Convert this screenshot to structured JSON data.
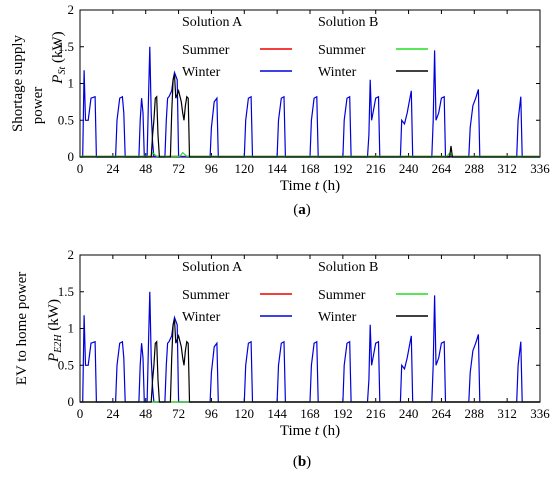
{
  "chart_data": [
    {
      "type": "line",
      "caption": "a",
      "ylabel_line1": "Shortage supply",
      "ylabel_line2": "power",
      "ylabel_symbol": "P",
      "ylabel_sub": "St",
      "ylabel_unit": "(kW)",
      "xlabel_word": "Time",
      "xlabel_symbol": "t",
      "xlabel_unit": "(h)",
      "xlim": [
        0,
        336
      ],
      "ylim": [
        0,
        2
      ],
      "xticks": [
        0,
        24,
        48,
        72,
        96,
        120,
        144,
        168,
        192,
        216,
        240,
        264,
        288,
        312,
        336
      ],
      "yticks": [
        0,
        0.5,
        1,
        1.5,
        2
      ],
      "legend": {
        "group_a": "Solution A",
        "group_b": "Solution B",
        "a_summer": "Summer",
        "a_winter": "Winter",
        "b_summer": "Summer",
        "b_winter": "Winter"
      },
      "series": [
        {
          "name": "Summer",
          "group": "Solution A",
          "color": "#ee0000",
          "points": [
            [
              0,
              0.01
            ],
            [
              336,
              0.01
            ]
          ]
        },
        {
          "name": "Winter",
          "group": "Solution A",
          "color": "#0000dd",
          "points": [
            [
              0,
              0
            ],
            [
              2,
              0
            ],
            [
              3,
              1.18
            ],
            [
              4,
              0.5
            ],
            [
              6,
              0.5
            ],
            [
              8,
              0.8
            ],
            [
              11,
              0.82
            ],
            [
              12,
              0
            ],
            [
              26,
              0
            ],
            [
              27,
              0.5
            ],
            [
              29,
              0.8
            ],
            [
              31,
              0.82
            ],
            [
              32,
              0.6
            ],
            [
              33,
              0
            ],
            [
              43,
              0
            ],
            [
              44,
              0.5
            ],
            [
              45,
              0.8
            ],
            [
              46,
              0.6
            ],
            [
              47,
              0
            ],
            [
              49,
              0
            ],
            [
              50,
              0.8
            ],
            [
              51,
              1.5
            ],
            [
              52,
              0.6
            ],
            [
              53,
              0.2
            ],
            [
              54,
              0
            ],
            [
              62,
              0
            ],
            [
              63,
              0.5
            ],
            [
              64,
              0.8
            ],
            [
              65,
              0.82
            ],
            [
              67,
              0.9
            ],
            [
              68,
              1.05
            ],
            [
              69,
              1.15
            ],
            [
              71,
              1.05
            ],
            [
              72,
              0
            ],
            [
              95,
              0
            ],
            [
              96,
              0.4
            ],
            [
              98,
              0.75
            ],
            [
              100,
              0.8
            ],
            [
              101,
              0
            ],
            [
              120,
              0
            ],
            [
              121,
              0.5
            ],
            [
              123,
              0.8
            ],
            [
              125,
              0.82
            ],
            [
              126,
              0
            ],
            [
              144,
              0
            ],
            [
              145,
              0.5
            ],
            [
              147,
              0.8
            ],
            [
              149,
              0.82
            ],
            [
              150,
              0
            ],
            [
              168,
              0
            ],
            [
              169,
              0.5
            ],
            [
              171,
              0.8
            ],
            [
              173,
              0.82
            ],
            [
              174,
              0
            ],
            [
              192,
              0
            ],
            [
              193,
              0.5
            ],
            [
              195,
              0.8
            ],
            [
              197,
              0.82
            ],
            [
              198,
              0
            ],
            [
              210,
              0
            ],
            [
              211,
              0.3
            ],
            [
              212,
              1.05
            ],
            [
              213,
              0.5
            ],
            [
              214,
              0.6
            ],
            [
              216,
              0.8
            ],
            [
              218,
              0.82
            ],
            [
              219,
              0
            ],
            [
              234,
              0
            ],
            [
              235,
              0.5
            ],
            [
              237,
              0.45
            ],
            [
              239,
              0.6
            ],
            [
              241,
              0.8
            ],
            [
              242,
              0.9
            ],
            [
              243,
              0
            ],
            [
              257,
              0
            ],
            [
              258,
              0.5
            ],
            [
              259,
              1.45
            ],
            [
              260,
              0.5
            ],
            [
              262,
              0.6
            ],
            [
              264,
              0.8
            ],
            [
              266,
              0.82
            ],
            [
              267,
              0
            ],
            [
              284,
              0
            ],
            [
              285,
              0.4
            ],
            [
              287,
              0.7
            ],
            [
              289,
              0.8
            ],
            [
              291,
              0.92
            ],
            [
              292,
              0
            ],
            [
              319,
              0
            ],
            [
              320,
              0.5
            ],
            [
              322,
              0.82
            ],
            [
              323,
              0
            ],
            [
              336,
              0
            ]
          ]
        },
        {
          "name": "Summer",
          "group": "Solution B",
          "color": "#22dd22",
          "points": [
            [
              0,
              0.01
            ],
            [
              52,
              0.01
            ],
            [
              53,
              0.06
            ],
            [
              56,
              0.01
            ],
            [
              73,
              0.01
            ],
            [
              75,
              0.06
            ],
            [
              78,
              0.01
            ],
            [
              268,
              0.01
            ],
            [
              270,
              0.05
            ],
            [
              272,
              0.01
            ],
            [
              336,
              0.01
            ]
          ]
        },
        {
          "name": "Winter",
          "group": "Solution B",
          "color": "#000000",
          "points": [
            [
              0,
              0
            ],
            [
              52,
              0
            ],
            [
              53,
              0.3
            ],
            [
              54,
              0.5
            ],
            [
              55,
              0.8
            ],
            [
              56,
              0.82
            ],
            [
              57,
              0.3
            ],
            [
              58,
              0
            ],
            [
              66,
              0
            ],
            [
              67,
              0.6
            ],
            [
              68,
              1.05
            ],
            [
              69,
              1.12
            ],
            [
              70,
              0.8
            ],
            [
              72,
              0.9
            ],
            [
              74,
              0.75
            ],
            [
              75,
              0.6
            ],
            [
              76,
              0.5
            ],
            [
              77,
              0.7
            ],
            [
              78,
              0.82
            ],
            [
              79,
              0.8
            ],
            [
              80,
              0
            ],
            [
              270,
              0
            ],
            [
              271,
              0.15
            ],
            [
              272,
              0
            ],
            [
              336,
              0
            ]
          ]
        }
      ]
    },
    {
      "type": "line",
      "caption": "b",
      "ylabel_line1": "EV to home power",
      "ylabel_line2": "",
      "ylabel_symbol": "P",
      "ylabel_sub": "E2H",
      "ylabel_unit": "(kW)",
      "xlabel_word": "Time",
      "xlabel_symbol": "t",
      "xlabel_unit": "(h)",
      "xlim": [
        0,
        336
      ],
      "ylim": [
        0,
        2
      ],
      "xticks": [
        0,
        24,
        48,
        72,
        96,
        120,
        144,
        168,
        192,
        216,
        240,
        264,
        288,
        312,
        336
      ],
      "yticks": [
        0,
        0.5,
        1,
        1.5,
        2
      ],
      "legend": {
        "group_a": "Solution A",
        "group_b": "Solution B",
        "a_summer": "Summer",
        "a_winter": "Winter",
        "b_summer": "Summer",
        "b_winter": "Winter"
      },
      "series": [
        {
          "name": "Summer",
          "group": "Solution A",
          "color": "#ee0000",
          "points": [
            [
              0,
              0
            ],
            [
              336,
              0
            ]
          ]
        },
        {
          "name": "Winter",
          "group": "Solution A",
          "color": "#0000dd",
          "points": [
            [
              0,
              0
            ],
            [
              2,
              0
            ],
            [
              3,
              1.18
            ],
            [
              4,
              0.5
            ],
            [
              6,
              0.5
            ],
            [
              8,
              0.8
            ],
            [
              11,
              0.82
            ],
            [
              12,
              0
            ],
            [
              26,
              0
            ],
            [
              27,
              0.5
            ],
            [
              29,
              0.8
            ],
            [
              31,
              0.82
            ],
            [
              32,
              0.6
            ],
            [
              33,
              0
            ],
            [
              43,
              0
            ],
            [
              44,
              0.5
            ],
            [
              45,
              0.8
            ],
            [
              46,
              0.6
            ],
            [
              47,
              0
            ],
            [
              49,
              0
            ],
            [
              50,
              0.8
            ],
            [
              51,
              1.5
            ],
            [
              52,
              0.6
            ],
            [
              53,
              0.2
            ],
            [
              54,
              0
            ],
            [
              62,
              0
            ],
            [
              63,
              0.5
            ],
            [
              64,
              0.8
            ],
            [
              65,
              0.82
            ],
            [
              67,
              0.9
            ],
            [
              68,
              1.05
            ],
            [
              69,
              1.15
            ],
            [
              71,
              1.05
            ],
            [
              72,
              0
            ],
            [
              95,
              0
            ],
            [
              96,
              0.4
            ],
            [
              98,
              0.75
            ],
            [
              100,
              0.8
            ],
            [
              101,
              0
            ],
            [
              120,
              0
            ],
            [
              121,
              0.5
            ],
            [
              123,
              0.8
            ],
            [
              125,
              0.82
            ],
            [
              126,
              0
            ],
            [
              144,
              0
            ],
            [
              145,
              0.5
            ],
            [
              147,
              0.8
            ],
            [
              149,
              0.82
            ],
            [
              150,
              0
            ],
            [
              168,
              0
            ],
            [
              169,
              0.5
            ],
            [
              171,
              0.8
            ],
            [
              173,
              0.82
            ],
            [
              174,
              0
            ],
            [
              192,
              0
            ],
            [
              193,
              0.5
            ],
            [
              195,
              0.8
            ],
            [
              197,
              0.82
            ],
            [
              198,
              0
            ],
            [
              210,
              0
            ],
            [
              211,
              0.3
            ],
            [
              212,
              1.05
            ],
            [
              213,
              0.5
            ],
            [
              214,
              0.6
            ],
            [
              216,
              0.8
            ],
            [
              218,
              0.82
            ],
            [
              219,
              0
            ],
            [
              234,
              0
            ],
            [
              235,
              0.5
            ],
            [
              237,
              0.45
            ],
            [
              239,
              0.6
            ],
            [
              241,
              0.8
            ],
            [
              242,
              0.9
            ],
            [
              243,
              0
            ],
            [
              257,
              0
            ],
            [
              258,
              0.5
            ],
            [
              259,
              1.45
            ],
            [
              260,
              0.5
            ],
            [
              262,
              0.6
            ],
            [
              264,
              0.8
            ],
            [
              266,
              0.82
            ],
            [
              267,
              0
            ],
            [
              284,
              0
            ],
            [
              285,
              0.4
            ],
            [
              287,
              0.7
            ],
            [
              289,
              0.8
            ],
            [
              291,
              0.92
            ],
            [
              292,
              0
            ],
            [
              319,
              0
            ],
            [
              320,
              0.5
            ],
            [
              322,
              0.82
            ],
            [
              323,
              0
            ],
            [
              336,
              0
            ]
          ]
        },
        {
          "name": "Summer",
          "group": "Solution B",
          "color": "#22dd22",
          "points": [
            [
              0,
              0
            ],
            [
              336,
              0
            ]
          ]
        },
        {
          "name": "Winter",
          "group": "Solution B",
          "color": "#000000",
          "points": [
            [
              0,
              0
            ],
            [
              52,
              0
            ],
            [
              53,
              0.3
            ],
            [
              54,
              0.5
            ],
            [
              55,
              0.8
            ],
            [
              56,
              0.82
            ],
            [
              57,
              0.3
            ],
            [
              58,
              0
            ],
            [
              66,
              0
            ],
            [
              67,
              0.6
            ],
            [
              68,
              1.05
            ],
            [
              69,
              1.12
            ],
            [
              70,
              0.8
            ],
            [
              72,
              0.9
            ],
            [
              74,
              0.75
            ],
            [
              75,
              0.6
            ],
            [
              76,
              0.5
            ],
            [
              77,
              0.7
            ],
            [
              78,
              0.82
            ],
            [
              79,
              0.8
            ],
            [
              80,
              0
            ],
            [
              336,
              0
            ]
          ]
        }
      ]
    }
  ]
}
